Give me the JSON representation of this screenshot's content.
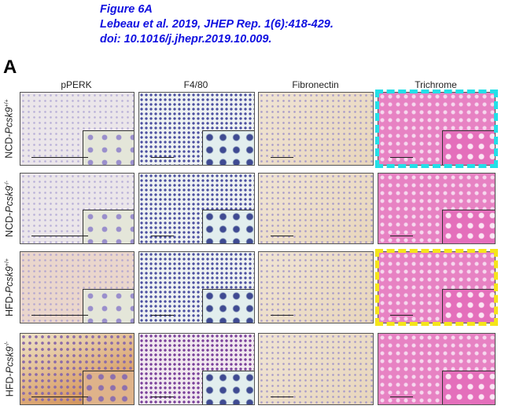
{
  "caption": {
    "line1": "Figure 6A",
    "line2": "Lebeau et al. 2019, JHEP Rep. 1(6):418-429.",
    "line3": "doi: 10.1016/j.jhepr.2019.10.009."
  },
  "panel_letter": "A",
  "columns": [
    "pPERK",
    "F4/80",
    "Fibronectin",
    "Trichrome"
  ],
  "rows": [
    {
      "diet": "NCD-",
      "gene": "Pcsk9",
      "genotype": "+/+"
    },
    {
      "diet": "NCD-",
      "gene": "Pcsk9",
      "genotype": "-/-"
    },
    {
      "diet": "HFD-",
      "gene": "Pcsk9",
      "genotype": "+/+"
    },
    {
      "diet": "HFD-",
      "gene": "Pcsk9",
      "genotype": "-/-"
    }
  ],
  "highlights": [
    {
      "row": 1,
      "column": "Trichrome",
      "color": "#22e0e8"
    },
    {
      "row": 3,
      "column": "Trichrome",
      "color": "#f5e51a"
    }
  ]
}
